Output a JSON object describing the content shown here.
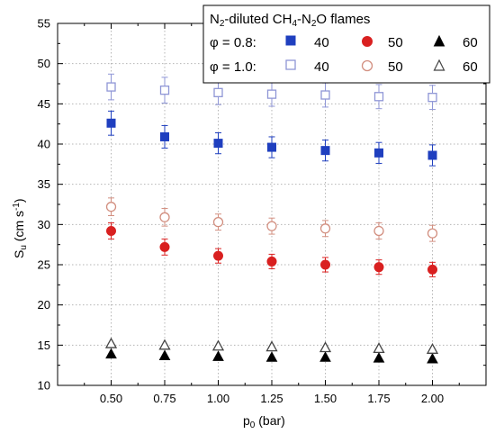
{
  "chart_data": {
    "type": "scatter",
    "x": [
      0.5,
      0.75,
      1.0,
      1.25,
      1.5,
      1.75,
      2.0
    ],
    "x_tick_labels": [
      "0.50",
      "0.75",
      "1.00",
      "1.25",
      "1.50",
      "1.75",
      "2.00"
    ],
    "xlim": [
      0.25,
      2.25
    ],
    "ylim": [
      10,
      55
    ],
    "y_ticks": [
      10,
      15,
      20,
      25,
      30,
      35,
      40,
      45,
      50,
      55
    ],
    "grid": true,
    "xlabel": {
      "main": "p",
      "sub": "0",
      "rest": " (bar)"
    },
    "ylabel": {
      "main": "S",
      "sub": "u",
      "rest1": " (cm s",
      "sup": "-1",
      "rest2": ")"
    },
    "legend": {
      "position": "top-right",
      "title": {
        "p1": "N",
        "s1": "2",
        "p2": "-diluted CH",
        "s2": "4",
        "p3": "-N",
        "s3": "2",
        "p4": "O flames"
      },
      "rows": [
        {
          "label": "φ = 0.8:",
          "items": [
            "40",
            "50",
            "60"
          ]
        },
        {
          "label": "φ = 1.0:",
          "items": [
            "40",
            "50",
            "60"
          ]
        }
      ]
    },
    "series": [
      {
        "phi": 0.8,
        "dilution": "40",
        "marker": "square",
        "filled": true,
        "color": "#1f3fbf",
        "y": [
          42.6,
          40.9,
          40.1,
          39.6,
          39.2,
          38.9,
          38.6
        ],
        "err": [
          1.5,
          1.4,
          1.3,
          1.3,
          1.3,
          1.3,
          1.3
        ]
      },
      {
        "phi": 1.0,
        "dilution": "40",
        "marker": "square",
        "filled": false,
        "color": "#8f96d6",
        "y": [
          47.1,
          46.7,
          46.4,
          46.2,
          46.1,
          45.9,
          45.8
        ],
        "err": [
          1.6,
          1.6,
          1.5,
          1.5,
          1.5,
          1.5,
          1.5
        ]
      },
      {
        "phi": 0.8,
        "dilution": "50",
        "marker": "circle",
        "filled": true,
        "color": "#d92020",
        "y": [
          29.2,
          27.2,
          26.1,
          25.4,
          25.0,
          24.7,
          24.4
        ],
        "err": [
          1.0,
          1.0,
          0.9,
          0.9,
          0.9,
          0.9,
          0.9
        ]
      },
      {
        "phi": 1.0,
        "dilution": "50",
        "marker": "circle",
        "filled": false,
        "color": "#d28f80",
        "y": [
          32.2,
          30.9,
          30.3,
          29.8,
          29.5,
          29.2,
          28.9
        ],
        "err": [
          1.1,
          1.1,
          1.0,
          1.0,
          1.0,
          1.0,
          1.0
        ]
      },
      {
        "phi": 0.8,
        "dilution": "60",
        "marker": "triangle",
        "filled": true,
        "color": "#000000",
        "y": [
          13.9,
          13.7,
          13.6,
          13.5,
          13.5,
          13.4,
          13.3
        ],
        "err": [
          0,
          0,
          0,
          0,
          0,
          0,
          0
        ]
      },
      {
        "phi": 1.0,
        "dilution": "60",
        "marker": "triangle",
        "filled": false,
        "color": "#444444",
        "y": [
          15.2,
          15.0,
          14.9,
          14.8,
          14.7,
          14.6,
          14.5
        ],
        "err": [
          0,
          0,
          0,
          0,
          0,
          0,
          0
        ]
      }
    ]
  }
}
